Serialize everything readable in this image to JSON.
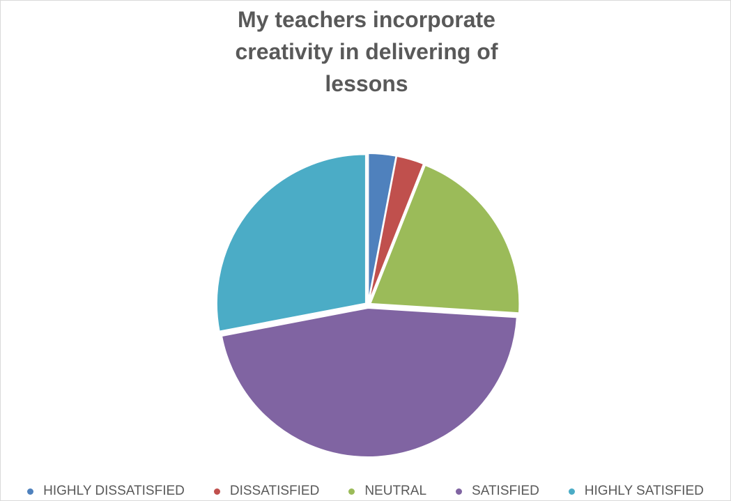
{
  "chart_data": {
    "type": "pie",
    "title": "My teachers incorporate creativity in delivering of lessons",
    "categories": [
      "HIGHLY DISSATISFIED",
      "DISSATISFIED",
      "NEUTRAL",
      "SATISFIED",
      "HIGHLY SATISFIED"
    ],
    "values": [
      3,
      3,
      20,
      46,
      28
    ],
    "colors": [
      "#4f81bd",
      "#c0504d",
      "#9bbb59",
      "#8064a2",
      "#4bacc6"
    ],
    "legend": "bottom"
  }
}
